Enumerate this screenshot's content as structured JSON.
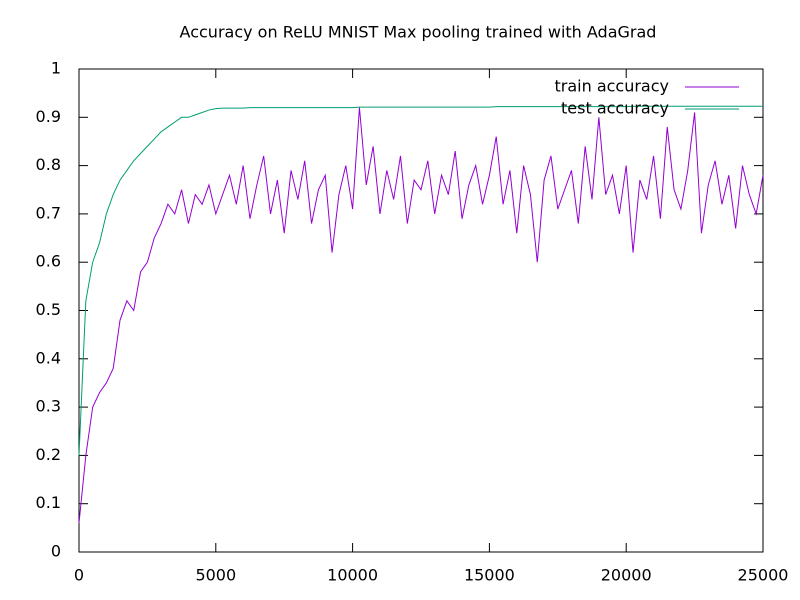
{
  "chart_data": {
    "type": "line",
    "title": "Accuracy on ReLU MNIST Max pooling trained with AdaGrad",
    "x": [
      0,
      250,
      500,
      750,
      1000,
      1250,
      1500,
      1750,
      2000,
      2250,
      2500,
      2750,
      3000,
      3250,
      3500,
      3750,
      4000,
      4250,
      4500,
      4750,
      5000,
      5250,
      5500,
      5750,
      6000,
      6250,
      6500,
      6750,
      7000,
      7250,
      7500,
      7750,
      8000,
      8250,
      8500,
      8750,
      9000,
      9250,
      9500,
      9750,
      10000,
      10250,
      10500,
      10750,
      11000,
      11250,
      11500,
      11750,
      12000,
      12250,
      12500,
      12750,
      13000,
      13250,
      13500,
      13750,
      14000,
      14250,
      14500,
      14750,
      15000,
      15250,
      15500,
      15750,
      16000,
      16250,
      16500,
      16750,
      17000,
      17250,
      17500,
      17750,
      18000,
      18250,
      18500,
      18750,
      19000,
      19250,
      19500,
      19750,
      20000,
      20250,
      20500,
      20750,
      21000,
      21250,
      21500,
      21750,
      22000,
      22250,
      22500,
      22750,
      23000,
      23250,
      23500,
      23750,
      24000,
      24250,
      24500,
      24750,
      25000
    ],
    "series": [
      {
        "name": "train accuracy",
        "color": "#9400d3",
        "values": [
          0.06,
          0.2,
          0.3,
          0.33,
          0.35,
          0.38,
          0.48,
          0.52,
          0.5,
          0.58,
          0.6,
          0.65,
          0.68,
          0.72,
          0.7,
          0.75,
          0.68,
          0.74,
          0.72,
          0.76,
          0.7,
          0.74,
          0.78,
          0.72,
          0.8,
          0.69,
          0.76,
          0.82,
          0.7,
          0.77,
          0.66,
          0.79,
          0.73,
          0.81,
          0.68,
          0.75,
          0.78,
          0.62,
          0.74,
          0.8,
          0.71,
          0.92,
          0.76,
          0.84,
          0.7,
          0.79,
          0.73,
          0.82,
          0.68,
          0.77,
          0.75,
          0.81,
          0.7,
          0.78,
          0.74,
          0.83,
          0.69,
          0.76,
          0.8,
          0.72,
          0.78,
          0.86,
          0.72,
          0.79,
          0.66,
          0.8,
          0.74,
          0.6,
          0.77,
          0.82,
          0.71,
          0.75,
          0.79,
          0.68,
          0.84,
          0.73,
          0.9,
          0.74,
          0.78,
          0.7,
          0.8,
          0.62,
          0.77,
          0.73,
          0.82,
          0.69,
          0.88,
          0.75,
          0.71,
          0.79,
          0.91,
          0.66,
          0.76,
          0.81,
          0.72,
          0.78,
          0.67,
          0.8,
          0.74,
          0.7,
          0.78
        ]
      },
      {
        "name": "test accuracy",
        "color": "#009e73",
        "values": [
          0.2,
          0.52,
          0.6,
          0.64,
          0.7,
          0.74,
          0.77,
          0.79,
          0.81,
          0.825,
          0.84,
          0.855,
          0.87,
          0.88,
          0.89,
          0.9,
          0.9,
          0.905,
          0.91,
          0.915,
          0.918,
          0.919,
          0.919,
          0.919,
          0.919,
          0.92,
          0.92,
          0.92,
          0.92,
          0.92,
          0.92,
          0.92,
          0.92,
          0.92,
          0.92,
          0.92,
          0.92,
          0.92,
          0.92,
          0.92,
          0.92,
          0.921,
          0.921,
          0.921,
          0.921,
          0.921,
          0.921,
          0.921,
          0.921,
          0.921,
          0.921,
          0.921,
          0.921,
          0.921,
          0.921,
          0.921,
          0.921,
          0.921,
          0.921,
          0.921,
          0.921,
          0.922,
          0.922,
          0.922,
          0.922,
          0.922,
          0.922,
          0.922,
          0.922,
          0.922,
          0.922,
          0.922,
          0.922,
          0.922,
          0.922,
          0.922,
          0.922,
          0.922,
          0.922,
          0.922,
          0.922,
          0.923,
          0.923,
          0.923,
          0.923,
          0.923,
          0.923,
          0.923,
          0.923,
          0.923,
          0.923,
          0.923,
          0.923,
          0.923,
          0.923,
          0.923,
          0.923,
          0.923,
          0.923,
          0.923,
          0.923
        ]
      }
    ],
    "xlim": [
      0,
      25000
    ],
    "xticks": [
      0,
      5000,
      10000,
      15000,
      20000,
      25000
    ],
    "ylim": [
      0,
      1
    ],
    "yticks": [
      0,
      0.1,
      0.2,
      0.3,
      0.4,
      0.5,
      0.6,
      0.7,
      0.8,
      0.9,
      1
    ],
    "grid": false,
    "legend": "top-right"
  }
}
